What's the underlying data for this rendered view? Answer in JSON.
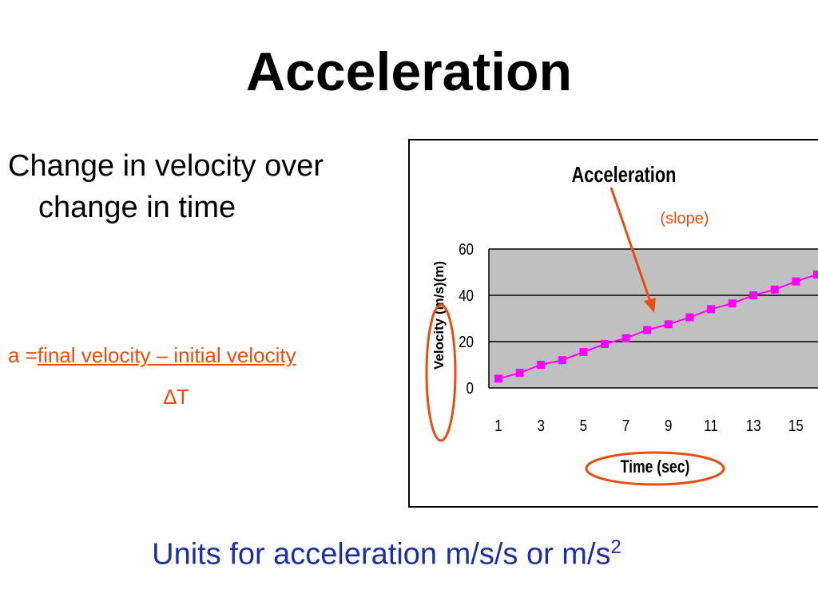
{
  "slide": {
    "title": "Acceleration",
    "bullet_line1": "Change in velocity over",
    "bullet_line2": "change in time",
    "formula_prefix": "a =",
    "formula_numerator": "final velocity – initial velocity",
    "formula_denominator_symbol": "∆",
    "formula_denominator_text": "T",
    "units_text": "Units for acceleration m/s/s or m/s",
    "units_superscript": "2"
  },
  "chart_data": {
    "type": "line",
    "title": "Acceleration",
    "annotation": "(slope)",
    "xlabel": "Time (sec)",
    "ylabel": "Velocity (m/s)(m)",
    "x_tick_labels": [
      "1",
      "3",
      "5",
      "7",
      "9",
      "11",
      "13",
      "15"
    ],
    "y_tick_labels": [
      "0",
      "20",
      "40",
      "60"
    ],
    "ylim": [
      0,
      60
    ],
    "grid": true,
    "legend": "none",
    "series": [
      {
        "x": [
          1,
          2,
          3,
          4,
          5,
          6,
          7,
          8,
          9,
          10,
          11,
          12,
          13,
          14,
          15,
          16
        ],
        "y": [
          4,
          6.5,
          10,
          12,
          15.5,
          19,
          21.5,
          25,
          27.5,
          30.5,
          34,
          36.5,
          40,
          42.5,
          46,
          49
        ]
      }
    ],
    "colors": {
      "series": "#ff00ff",
      "plot_background": "#c0c0c0",
      "annotation": "#e84e0f",
      "highlight": "#e84e0f"
    }
  }
}
